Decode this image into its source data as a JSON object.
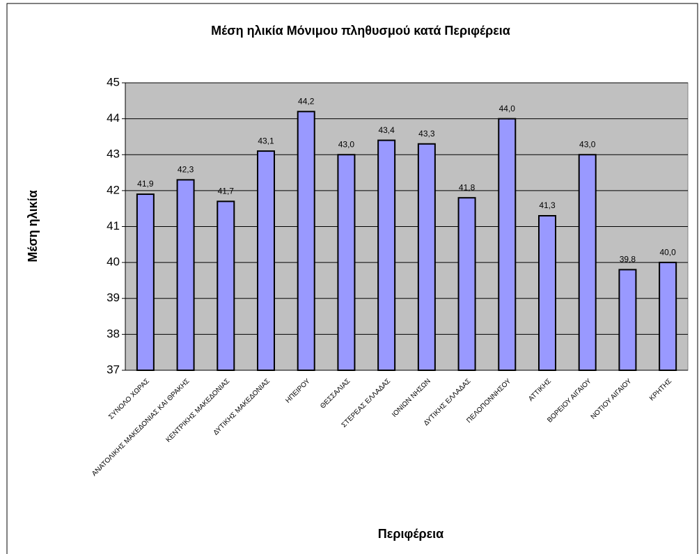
{
  "chart_data": {
    "type": "bar",
    "title": "Μέση ηλικία Μόνιμου πληθυσμού κατά Περιφέρεια",
    "x_label": "Περιφέρεια",
    "y_label": "Μέση ηλικία",
    "categories": [
      "ΣΥΝΟΛΟ ΧΩΡΑΣ",
      "ΑΝΑΤΟΛΙΚΗΣ ΜΑΚΕΔΟΝΙΑΣ ΚΑΙ ΘΡΑΚΗΣ",
      "ΚΕΝΤΡΙΚΗΣ ΜΑΚΕΔΟΝΙΑΣ",
      "ΔΥΤΙΚΗΣ ΜΑΚΕΔΟΝΙΑΣ",
      "ΗΠΕΙΡΟΥ",
      "ΘΕΣΣΑΛΙΑΣ",
      "ΣΤΕΡΕΑΣ ΕΛΛΑΔΑΣ",
      "ΙΟΝΙΩΝ ΝΗΣΩΝ",
      "ΔΥΤΙΚΗΣ ΕΛΛΑΔΑΣ",
      "ΠΕΛΟΠΟΝΝΗΣΟΥ",
      "ΑΤΤΙΚΗΣ",
      "ΒΟΡΕΙΟΥ ΑΙΓΑΙΟΥ",
      "ΝΟΤΙΟΥ ΑΙΓΑΙΟΥ",
      "ΚΡΗΤΗΣ"
    ],
    "values": [
      41.9,
      42.3,
      41.7,
      43.1,
      44.2,
      43.0,
      43.4,
      43.3,
      41.8,
      44.0,
      41.3,
      43.0,
      39.8,
      40.0
    ],
    "value_labels": [
      "41,9",
      "42,3",
      "41,7",
      "43,1",
      "44,2",
      "43,0",
      "43,4",
      "43,3",
      "41,8",
      "44,0",
      "41,3",
      "43,0",
      "39,8",
      "40,0"
    ],
    "color": "#9999ff",
    "ylim": [
      37,
      45
    ],
    "yticks": [
      37,
      38,
      39,
      40,
      41,
      42,
      43,
      44,
      45
    ],
    "grid": true
  }
}
